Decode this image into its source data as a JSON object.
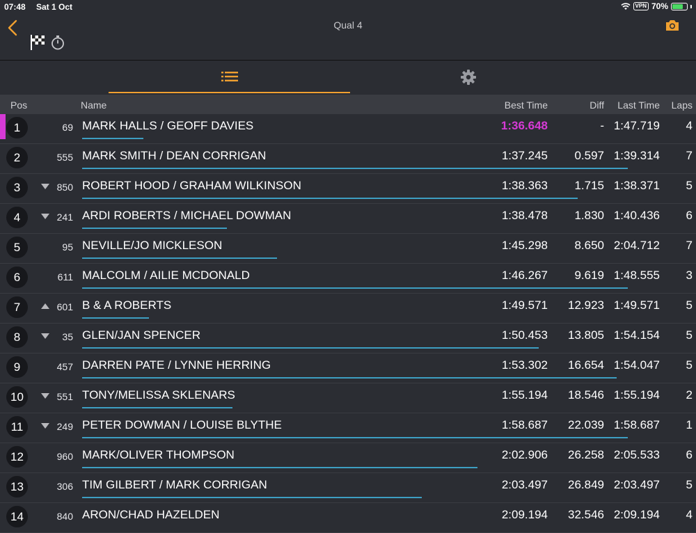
{
  "status": {
    "time": "07:48",
    "date": "Sat 1 Oct",
    "vpn": "VPN",
    "battery": "70%",
    "battery_fraction": 0.7
  },
  "header": {
    "title": "Qual 4",
    "icons": [
      "back-chevron-icon",
      "checkered-flag-icon",
      "stopwatch-icon",
      "camera-icon"
    ]
  },
  "tabs": [
    {
      "icon": "list-icon",
      "active": true
    },
    {
      "icon": "gear-icon",
      "active": false
    }
  ],
  "colors": {
    "accent": "#f0a030",
    "fastest": "#d63ad6",
    "bar": "#3d9ec2",
    "background": "#2b2d33"
  },
  "columns": {
    "pos": "Pos",
    "name": "Name",
    "best": "Best Time",
    "diff": "Diff",
    "last": "Last Time",
    "laps": "Laps"
  },
  "rows": [
    {
      "pos": "1",
      "num": "69",
      "name": "MARK HALLS / GEOFF DAVIES",
      "best": "1:36.648",
      "diff": "-",
      "last": "1:47.719",
      "laps": "4",
      "trend": "",
      "highlight": true,
      "bar": 0.11
    },
    {
      "pos": "2",
      "num": "555",
      "name": "MARK SMITH / DEAN CORRIGAN",
      "best": "1:37.245",
      "diff": "0.597",
      "last": "1:39.314",
      "laps": "7",
      "trend": "",
      "bar": 0.98
    },
    {
      "pos": "3",
      "num": "850",
      "name": "ROBERT HOOD / GRAHAM WILKINSON",
      "best": "1:38.363",
      "diff": "1.715",
      "last": "1:38.371",
      "laps": "5",
      "trend": "down",
      "bar": 0.89
    },
    {
      "pos": "4",
      "num": "241",
      "name": "ARDI ROBERTS / MICHAEL DOWMAN",
      "best": "1:38.478",
      "diff": "1.830",
      "last": "1:40.436",
      "laps": "6",
      "trend": "down",
      "bar": 0.26
    },
    {
      "pos": "5",
      "num": "95",
      "name": "NEVILLE/JO MICKLESON",
      "best": "1:45.298",
      "diff": "8.650",
      "last": "2:04.712",
      "laps": "7",
      "trend": "",
      "bar": 0.35
    },
    {
      "pos": "6",
      "num": "611",
      "name": "MALCOLM / AILIE MCDONALD",
      "best": "1:46.267",
      "diff": "9.619",
      "last": "1:48.555",
      "laps": "3",
      "trend": "",
      "bar": 0.98
    },
    {
      "pos": "7",
      "num": "601",
      "name": "B & A ROBERTS",
      "best": "1:49.571",
      "diff": "12.923",
      "last": "1:49.571",
      "laps": "5",
      "trend": "up",
      "bar": 0.12
    },
    {
      "pos": "8",
      "num": "35",
      "name": "GLEN/JAN SPENCER",
      "best": "1:50.453",
      "diff": "13.805",
      "last": "1:54.154",
      "laps": "5",
      "trend": "down",
      "bar": 0.82
    },
    {
      "pos": "9",
      "num": "457",
      "name": "DARREN PATE / LYNNE HERRING",
      "best": "1:53.302",
      "diff": "16.654",
      "last": "1:54.047",
      "laps": "5",
      "trend": "",
      "bar": 0.96
    },
    {
      "pos": "10",
      "num": "551",
      "name": "TONY/MELISSA SKLENARS",
      "best": "1:55.194",
      "diff": "18.546",
      "last": "1:55.194",
      "laps": "2",
      "trend": "down",
      "bar": 0.27
    },
    {
      "pos": "11",
      "num": "249",
      "name": "PETER DOWMAN / LOUISE BLYTHE",
      "best": "1:58.687",
      "diff": "22.039",
      "last": "1:58.687",
      "laps": "1",
      "trend": "down",
      "bar": 0.98
    },
    {
      "pos": "12",
      "num": "960",
      "name": "MARK/OLIVER THOMPSON",
      "best": "2:02.906",
      "diff": "26.258",
      "last": "2:05.533",
      "laps": "6",
      "trend": "",
      "bar": 0.71
    },
    {
      "pos": "13",
      "num": "306",
      "name": "TIM GILBERT / MARK CORRIGAN",
      "best": "2:03.497",
      "diff": "26.849",
      "last": "2:03.497",
      "laps": "5",
      "trend": "",
      "bar": 0.61
    },
    {
      "pos": "14",
      "num": "840",
      "name": "ARON/CHAD HAZELDEN",
      "best": "2:09.194",
      "diff": "32.546",
      "last": "2:09.194",
      "laps": "4",
      "trend": "",
      "bar": 0.0
    }
  ]
}
